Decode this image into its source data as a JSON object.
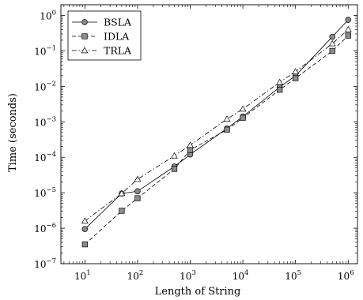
{
  "chart_data": {
    "type": "line",
    "xlabel": "Length of String",
    "ylabel": "Time (seconds)",
    "x_scale": "log",
    "y_scale": "log",
    "xlim": [
      3.5,
      1500000
    ],
    "ylim": [
      1e-07,
      2
    ],
    "x_ticks": [
      {
        "base": "10",
        "exp": "1",
        "value": 10
      },
      {
        "base": "10",
        "exp": "2",
        "value": 100
      },
      {
        "base": "10",
        "exp": "3",
        "value": 1000
      },
      {
        "base": "10",
        "exp": "4",
        "value": 10000
      },
      {
        "base": "10",
        "exp": "5",
        "value": 100000
      },
      {
        "base": "10",
        "exp": "6",
        "value": 1000000
      }
    ],
    "y_ticks": [
      {
        "base": "10",
        "exp": "−7",
        "value": 1e-07
      },
      {
        "base": "10",
        "exp": "−6",
        "value": 1e-06
      },
      {
        "base": "10",
        "exp": "−5",
        "value": 1e-05
      },
      {
        "base": "10",
        "exp": "−4",
        "value": 0.0001
      },
      {
        "base": "10",
        "exp": "−3",
        "value": 0.001
      },
      {
        "base": "10",
        "exp": "−2",
        "value": 0.01
      },
      {
        "base": "10",
        "exp": "−1",
        "value": 0.1
      },
      {
        "base": "10",
        "exp": "0",
        "value": 1
      }
    ],
    "legend_position": "top-left",
    "grid": false,
    "series": [
      {
        "name": "BSLA",
        "marker": "circle",
        "line_style": "solid",
        "marker_color": "#8c8c8c",
        "x": [
          10,
          50,
          100,
          500,
          1000,
          5000,
          10000,
          50000,
          100000,
          500000,
          1000000
        ],
        "y": [
          9.5e-07,
          9.5e-06,
          1.1e-05,
          5.5e-05,
          0.00012,
          0.00065,
          0.0014,
          0.0095,
          0.02,
          0.25,
          0.75
        ]
      },
      {
        "name": "IDLA",
        "marker": "square",
        "line_style": "dashed",
        "marker_color": "#8c8c8c",
        "x": [
          10,
          50,
          100,
          500,
          1000,
          5000,
          10000,
          50000,
          100000,
          500000,
          1000000
        ],
        "y": [
          3.5e-07,
          3.1e-06,
          7e-06,
          4.7e-05,
          0.00016,
          0.0006,
          0.0013,
          0.008,
          0.017,
          0.1,
          0.27
        ]
      },
      {
        "name": "TRLA",
        "marker": "triangle",
        "line_style": "dash-dot",
        "marker_color": "#ffffff",
        "x": [
          10,
          50,
          100,
          500,
          1000,
          5000,
          10000,
          50000,
          100000,
          500000,
          1000000
        ],
        "y": [
          1.6e-06,
          9.5e-06,
          2.4e-05,
          0.00011,
          0.00022,
          0.0012,
          0.0023,
          0.013,
          0.026,
          0.16,
          0.4
        ]
      }
    ]
  }
}
